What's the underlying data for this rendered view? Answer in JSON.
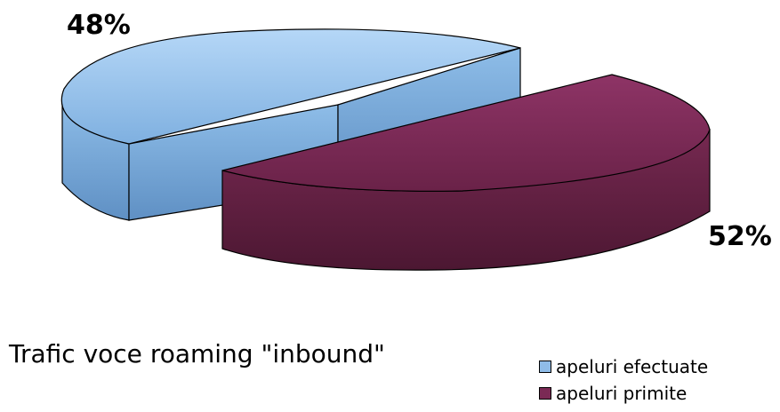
{
  "chart_data": {
    "type": "pie",
    "title": "Trafic voce roaming \"inbound\"",
    "slices": [
      {
        "label": "apeluri efectuate",
        "value": 48,
        "display": "48%",
        "color": "#8fbce8"
      },
      {
        "label": "apeluri primite",
        "value": 52,
        "display": "52%",
        "color": "#7b2a55"
      }
    ],
    "legend_position": "bottom-right",
    "style": "3d-exploded"
  }
}
